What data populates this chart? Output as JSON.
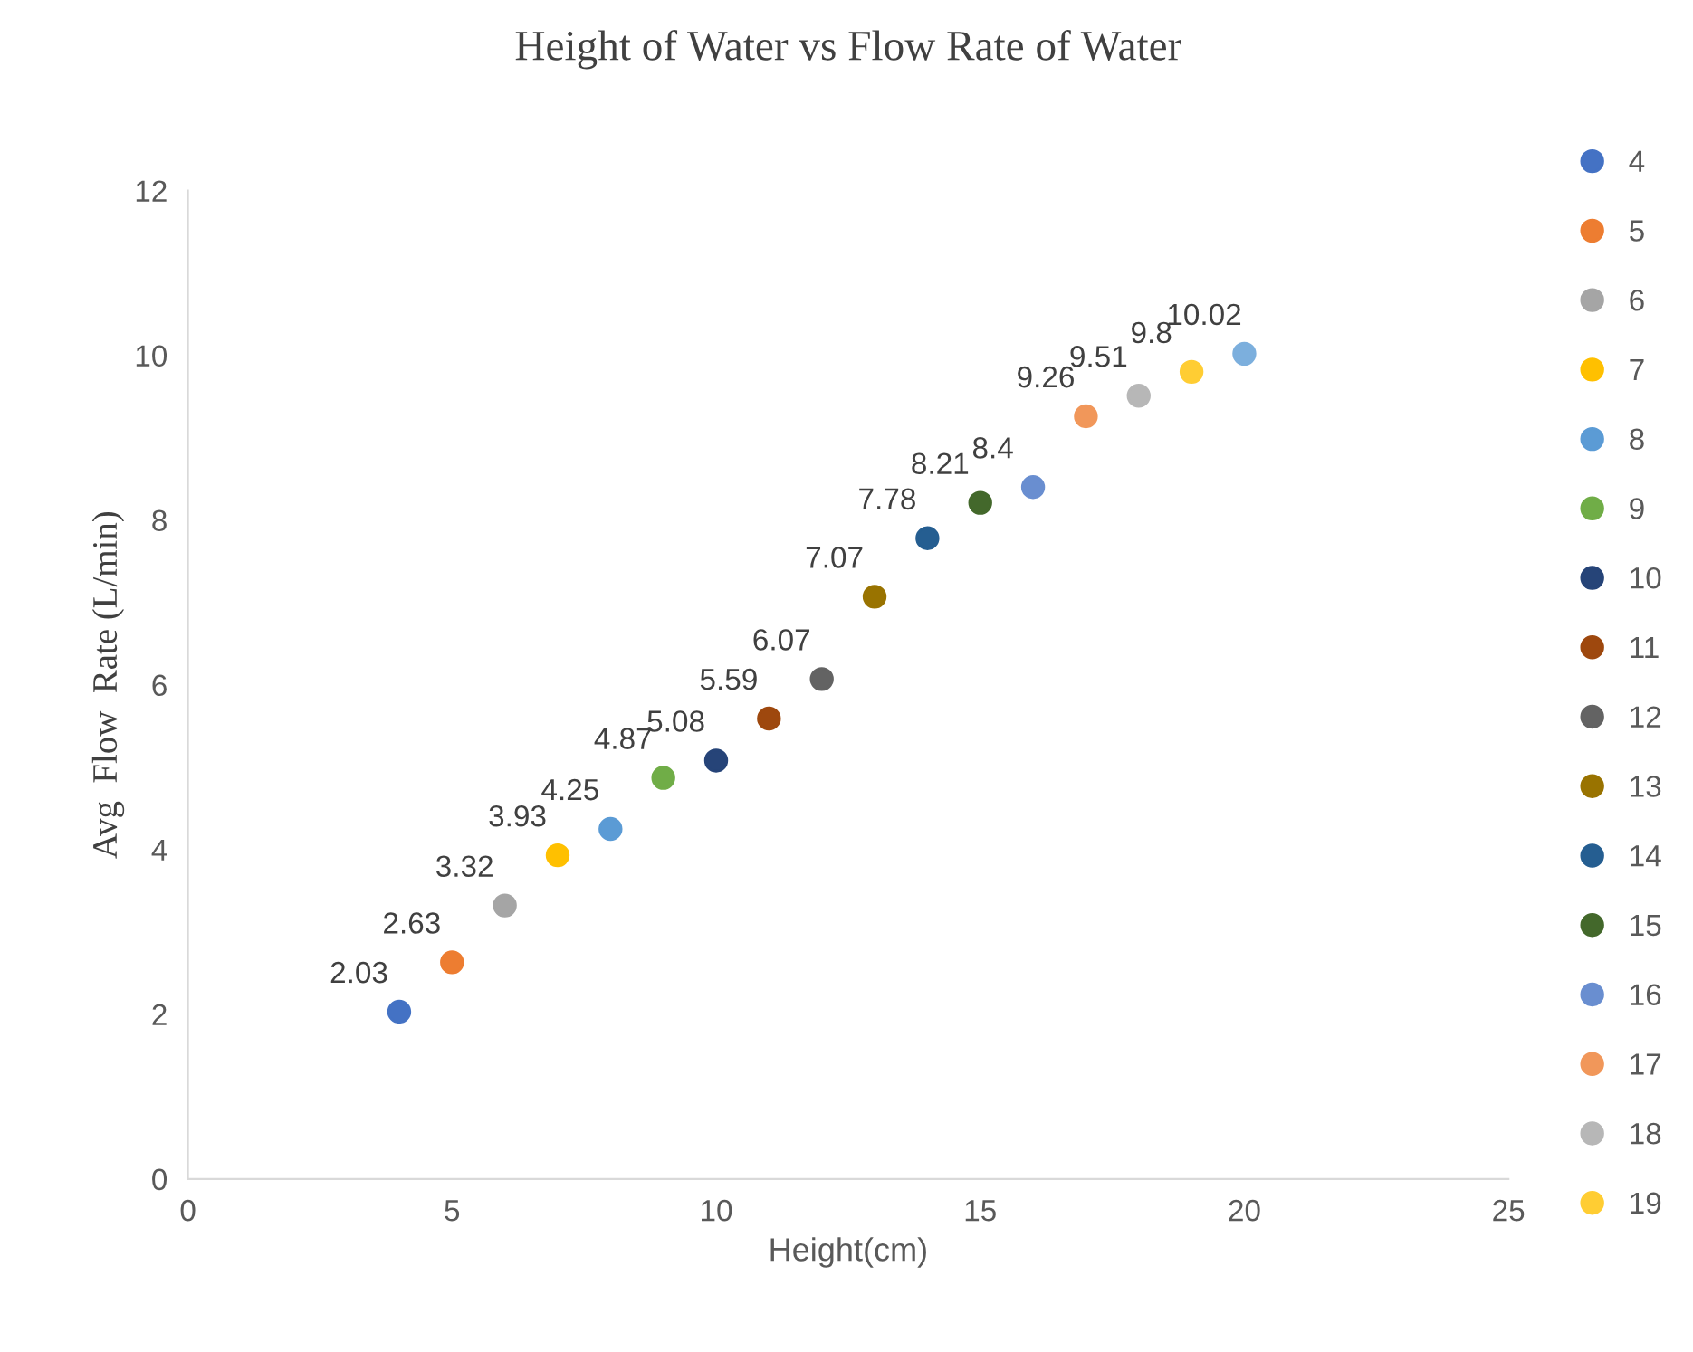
{
  "chart_data": {
    "type": "scatter",
    "title": "Height of Water vs Flow Rate of Water",
    "xlabel": "Height(cm)",
    "ylabel": "Avg  Flow  Rate (L/min)",
    "xlim": [
      0,
      25
    ],
    "xticks": [
      0,
      5,
      10,
      15,
      20,
      25
    ],
    "ylim": [
      0,
      12
    ],
    "yticks": [
      0,
      2,
      4,
      6,
      8,
      10,
      12
    ],
    "grid": false,
    "legend": "right",
    "marker": "circle",
    "data_labels": true,
    "series": [
      {
        "name": "4",
        "color": "#4472c4",
        "x": [
          4
        ],
        "values": [
          2.03
        ]
      },
      {
        "name": "5",
        "color": "#ed7d31",
        "x": [
          5
        ],
        "values": [
          2.63
        ]
      },
      {
        "name": "6",
        "color": "#a5a5a5",
        "x": [
          6
        ],
        "values": [
          3.32
        ]
      },
      {
        "name": "7",
        "color": "#ffc000",
        "x": [
          7
        ],
        "values": [
          3.93
        ]
      },
      {
        "name": "8",
        "color": "#5b9bd5",
        "x": [
          8
        ],
        "values": [
          4.25
        ]
      },
      {
        "name": "9",
        "color": "#70ad47",
        "x": [
          9
        ],
        "values": [
          4.87
        ]
      },
      {
        "name": "10",
        "color": "#264478",
        "x": [
          10
        ],
        "values": [
          5.08
        ]
      },
      {
        "name": "11",
        "color": "#9e480e",
        "x": [
          11
        ],
        "values": [
          5.59
        ]
      },
      {
        "name": "12",
        "color": "#636363",
        "x": [
          12
        ],
        "values": [
          6.07
        ]
      },
      {
        "name": "13",
        "color": "#997300",
        "x": [
          13
        ],
        "values": [
          7.07
        ]
      },
      {
        "name": "14",
        "color": "#255e91",
        "x": [
          14
        ],
        "values": [
          7.78
        ]
      },
      {
        "name": "15",
        "color": "#43682b",
        "x": [
          15
        ],
        "values": [
          8.21
        ]
      },
      {
        "name": "16",
        "color": "#698ed0",
        "x": [
          16
        ],
        "values": [
          8.4
        ]
      },
      {
        "name": "17",
        "color": "#f1975a",
        "x": [
          17
        ],
        "values": [
          9.26
        ]
      },
      {
        "name": "18",
        "color": "#b7b7b7",
        "x": [
          18
        ],
        "values": [
          9.51
        ]
      },
      {
        "name": "19",
        "color": "#ffcd33",
        "x": [
          19
        ],
        "values": [
          9.8
        ]
      },
      {
        "color": "#7cafdd",
        "x": [
          20
        ],
        "values": [
          10.02
        ]
      }
    ]
  }
}
